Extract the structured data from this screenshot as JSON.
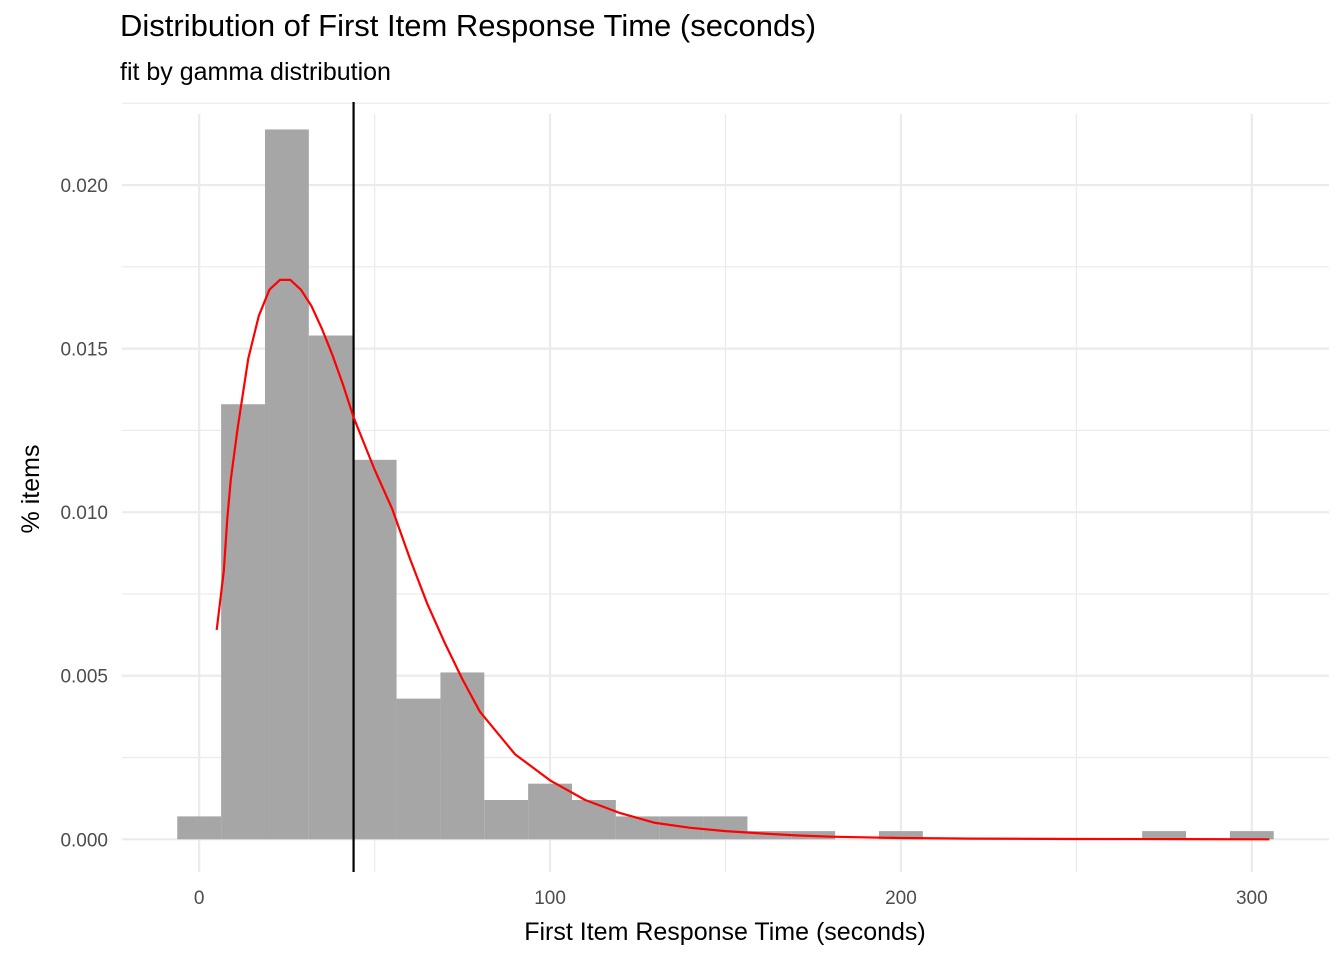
{
  "chart_data": {
    "type": "bar",
    "title": "Distribution of First Item Response Time (seconds)",
    "subtitle": "fit by gamma distribution",
    "xlabel": "First Item Response Time (seconds)",
    "ylabel": "% items",
    "xlim": [
      -22,
      322
    ],
    "ylim": [
      -0.001,
      0.0226
    ],
    "x_ticks": [
      0,
      100,
      200,
      300
    ],
    "x_tick_labels": [
      "0",
      "100",
      "200",
      "300"
    ],
    "y_ticks": [
      0.0,
      0.005,
      0.01,
      0.015,
      0.02
    ],
    "y_tick_labels": [
      "0.000",
      "0.005",
      "0.010",
      "0.015",
      "0.020"
    ],
    "grid": true,
    "histogram": {
      "bin_width": 12.5,
      "bins": [
        {
          "x0": -6.25,
          "x1": 6.25,
          "density": 0.0007
        },
        {
          "x0": 6.25,
          "x1": 18.75,
          "density": 0.0133
        },
        {
          "x0": 18.75,
          "x1": 31.25,
          "density": 0.0217
        },
        {
          "x0": 31.25,
          "x1": 43.75,
          "density": 0.0154
        },
        {
          "x0": 43.75,
          "x1": 56.25,
          "density": 0.0116
        },
        {
          "x0": 56.25,
          "x1": 68.75,
          "density": 0.0043
        },
        {
          "x0": 68.75,
          "x1": 81.25,
          "density": 0.0051
        },
        {
          "x0": 81.25,
          "x1": 93.75,
          "density": 0.0012
        },
        {
          "x0": 93.75,
          "x1": 106.25,
          "density": 0.0017
        },
        {
          "x0": 106.25,
          "x1": 118.75,
          "density": 0.0012
        },
        {
          "x0": 118.75,
          "x1": 131.25,
          "density": 0.0007
        },
        {
          "x0": 131.25,
          "x1": 143.75,
          "density": 0.0007
        },
        {
          "x0": 143.75,
          "x1": 156.25,
          "density": 0.0007
        },
        {
          "x0": 156.25,
          "x1": 168.75,
          "density": 0.00025
        },
        {
          "x0": 168.75,
          "x1": 181.25,
          "density": 0.00025
        },
        {
          "x0": 193.75,
          "x1": 206.25,
          "density": 0.00025
        },
        {
          "x0": 268.75,
          "x1": 281.25,
          "density": 0.00025
        },
        {
          "x0": 293.75,
          "x1": 306.25,
          "density": 0.00025
        }
      ]
    },
    "series": [
      {
        "name": "gamma fit",
        "color": "#ff0000",
        "x": [
          5,
          7,
          8,
          9,
          11,
          14,
          17,
          20,
          23,
          26,
          29,
          32,
          35,
          38,
          41,
          44,
          47,
          50,
          55,
          60,
          65,
          70,
          75,
          80,
          90,
          100,
          110,
          120,
          130,
          140,
          150,
          160,
          170,
          180,
          200,
          220,
          250,
          280,
          305
        ],
        "y": [
          0.0064,
          0.0082,
          0.0098,
          0.011,
          0.0126,
          0.0147,
          0.016,
          0.0168,
          0.0171,
          0.0171,
          0.0168,
          0.0163,
          0.0156,
          0.0148,
          0.0139,
          0.0129,
          0.0121,
          0.0113,
          0.0101,
          0.0086,
          0.0072,
          0.006,
          0.0049,
          0.0039,
          0.0026,
          0.0018,
          0.0012,
          0.0008,
          0.0005,
          0.00035,
          0.00025,
          0.00018,
          0.00012,
          8e-05,
          4e-05,
          2e-05,
          1e-05,
          5e-06,
          0.0
        ]
      }
    ],
    "vline": {
      "x": 44,
      "color": "#000000"
    },
    "bar_color": "#a6a6a6",
    "grid_color": "#ebebeb"
  }
}
